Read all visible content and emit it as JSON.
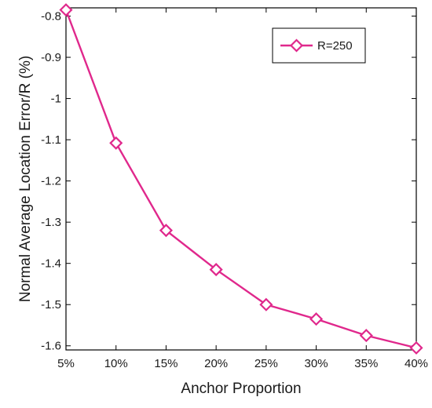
{
  "chart_data": {
    "type": "line",
    "categories": [
      "5%",
      "10%",
      "15%",
      "20%",
      "25%",
      "30%",
      "35%",
      "40%"
    ],
    "series": [
      {
        "name": "R=250",
        "values": [
          -0.785,
          -1.108,
          -1.32,
          -1.415,
          -1.5,
          -1.535,
          -1.575,
          -1.605
        ],
        "color": "#e0288c",
        "marker": "diamond"
      }
    ],
    "xlabel": "Anchor Proportion",
    "ylabel": "Normal Average Location Error/R (%)",
    "ylim": [
      -1.61,
      -0.78
    ],
    "yticks": [
      -0.8,
      -0.9,
      -1,
      -1.1,
      -1.2,
      -1.3,
      -1.4,
      -1.5,
      -1.6
    ],
    "ytick_labels": [
      "-0.8",
      "-0.9",
      "-1",
      "-1.1",
      "-1.2",
      "-1.3",
      "-1.4",
      "-1.5",
      "-1.6"
    ],
    "grid": false,
    "legend_position": "top-right"
  }
}
